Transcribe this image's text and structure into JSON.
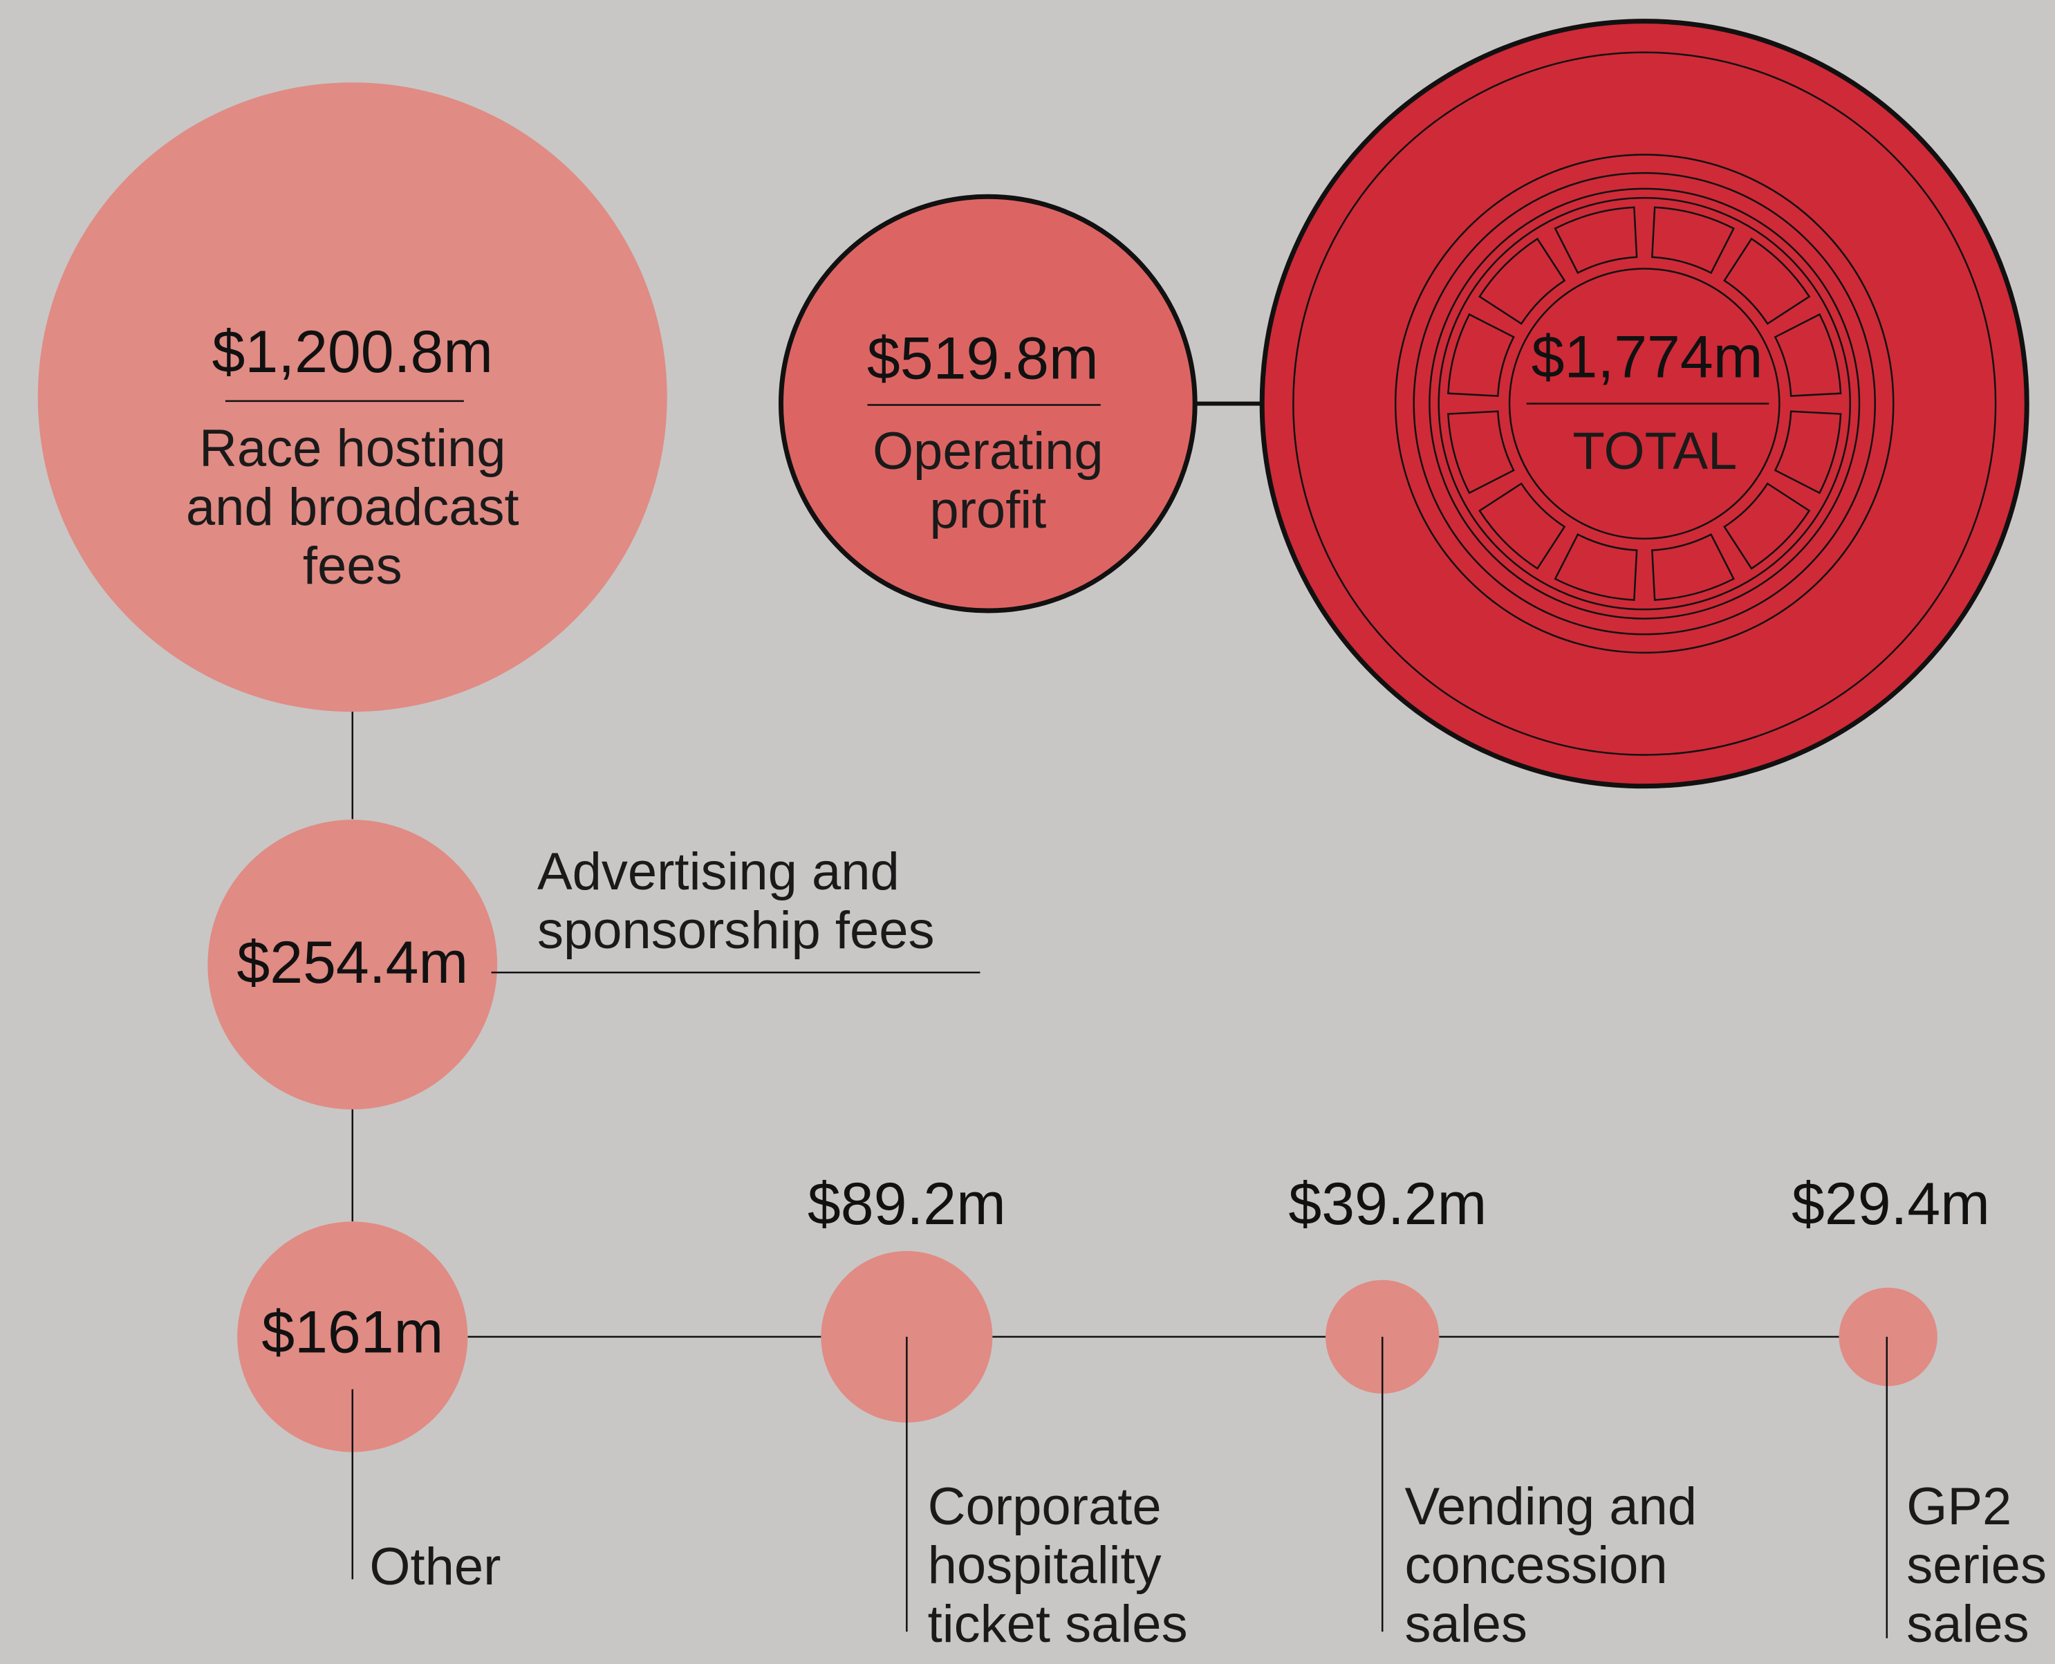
{
  "chart_data": {
    "type": "bubble",
    "categories": [
      "Race hosting and broadcast fees",
      "Advertising and sponsorship fees",
      "Other",
      "Corporate hospitality ticket sales",
      "Vending and concession sales",
      "GP2 series sales",
      "Operating profit",
      "TOTAL"
    ],
    "values": [
      1200.8,
      254.4,
      161,
      89.2,
      39.2,
      29.4,
      519.8,
      1774
    ],
    "value_labels": [
      "$1,200.8m",
      "$254.4m",
      "$161m",
      "$89.2m",
      "$39.2m",
      "$29.4m",
      "$519.8m",
      "$1,774m"
    ],
    "colors": [
      "#e08b84",
      "#e08b84",
      "#e08b84",
      "#e08b84",
      "#e08b84",
      "#e08b84",
      "#dc6564",
      "#cf2a38"
    ]
  }
}
